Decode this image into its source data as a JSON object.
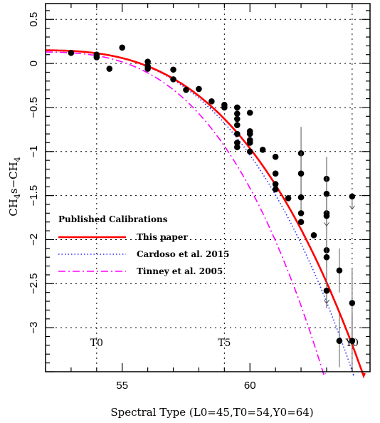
{
  "chart_data": {
    "type": "scatter",
    "xlabel": "Spectral Type (L0=45,T0=54,Y0=64)",
    "ylabel_parts": [
      "CH",
      "4",
      "s−CH",
      "4"
    ],
    "xlim": [
      52.0,
      64.7
    ],
    "ylim": [
      -3.5,
      0.68
    ],
    "x_ticks": [
      55,
      60
    ],
    "y_ticks": [
      0.5,
      0,
      -0.5,
      -1,
      -1.5,
      -2,
      -2.5,
      -3
    ],
    "y_tick_labels": [
      "0.5",
      "0",
      "−0.5",
      "−1",
      "−1.5",
      "−2",
      "−2.5",
      "−3"
    ],
    "grid": true,
    "grid_x": [
      54,
      59,
      64
    ],
    "markers": [
      {
        "label": "T0",
        "x": 54
      },
      {
        "label": "T5",
        "x": 59
      },
      {
        "label": "Y0",
        "x": 64
      }
    ],
    "legend": {
      "title": "Published Calibrations",
      "entries": [
        "This paper",
        "Cardoso et al. 2015",
        "Tinney et al. 2005"
      ]
    },
    "points": [
      {
        "x": 53.0,
        "y": 0.12
      },
      {
        "x": 54.0,
        "y": 0.1
      },
      {
        "x": 54.0,
        "y": 0.07
      },
      {
        "x": 54.5,
        "y": -0.06
      },
      {
        "x": 55.0,
        "y": 0.18
      },
      {
        "x": 56.0,
        "y": 0.02
      },
      {
        "x": 56.0,
        "y": -0.03
      },
      {
        "x": 56.0,
        "y": -0.06
      },
      {
        "x": 57.0,
        "y": -0.07
      },
      {
        "x": 57.0,
        "y": -0.18
      },
      {
        "x": 57.5,
        "y": -0.3
      },
      {
        "x": 58.0,
        "y": -0.29
      },
      {
        "x": 58.5,
        "y": -0.43
      },
      {
        "x": 59.0,
        "y": -0.47
      },
      {
        "x": 59.0,
        "y": -0.5
      },
      {
        "x": 59.5,
        "y": -0.5
      },
      {
        "x": 59.5,
        "y": -0.57
      },
      {
        "x": 59.5,
        "y": -0.63
      },
      {
        "x": 59.5,
        "y": -0.7
      },
      {
        "x": 59.5,
        "y": -0.8
      },
      {
        "x": 59.5,
        "y": -0.9
      },
      {
        "x": 59.5,
        "y": -0.95
      },
      {
        "x": 60.0,
        "y": -0.56
      },
      {
        "x": 60.0,
        "y": -0.77
      },
      {
        "x": 60.0,
        "y": -0.8
      },
      {
        "x": 60.0,
        "y": -0.87
      },
      {
        "x": 60.0,
        "y": -0.9
      },
      {
        "x": 60.0,
        "y": -1.0
      },
      {
        "x": 60.5,
        "y": -0.98
      },
      {
        "x": 61.0,
        "y": -1.06
      },
      {
        "x": 61.0,
        "y": -1.25
      },
      {
        "x": 61.0,
        "y": -1.37
      },
      {
        "x": 61.0,
        "y": -1.43
      },
      {
        "x": 61.5,
        "y": -1.53
      },
      {
        "x": 62.0,
        "y": -1.02,
        "err": 0.3
      },
      {
        "x": 62.0,
        "y": -1.25,
        "err": 0.25
      },
      {
        "x": 62.0,
        "y": -1.52,
        "err": 0.2
      },
      {
        "x": 62.0,
        "y": -1.7
      },
      {
        "x": 62.0,
        "y": -1.8
      },
      {
        "x": 62.5,
        "y": -1.95
      },
      {
        "x": 63.0,
        "y": -1.31,
        "err": 0.25
      },
      {
        "x": 63.0,
        "y": -1.48,
        "err": 0.2
      },
      {
        "x": 63.0,
        "y": -1.7,
        "err": 0.2,
        "upper": true
      },
      {
        "x": 63.0,
        "y": -1.73,
        "err": 0.2
      },
      {
        "x": 63.0,
        "y": -2.12,
        "err": 0.2
      },
      {
        "x": 63.0,
        "y": -2.2,
        "err": 0.2
      },
      {
        "x": 63.0,
        "y": -2.58,
        "err": 0.2,
        "upper": true
      },
      {
        "x": 63.5,
        "y": -2.35,
        "err": 0.25
      },
      {
        "x": 63.5,
        "y": -3.15,
        "err": 0.3
      },
      {
        "x": 64.0,
        "y": -1.51,
        "upper": true
      },
      {
        "x": 64.0,
        "y": -2.72,
        "err": 0.4
      },
      {
        "x": 64.0,
        "y": -3.15,
        "err": 0.3
      }
    ]
  }
}
